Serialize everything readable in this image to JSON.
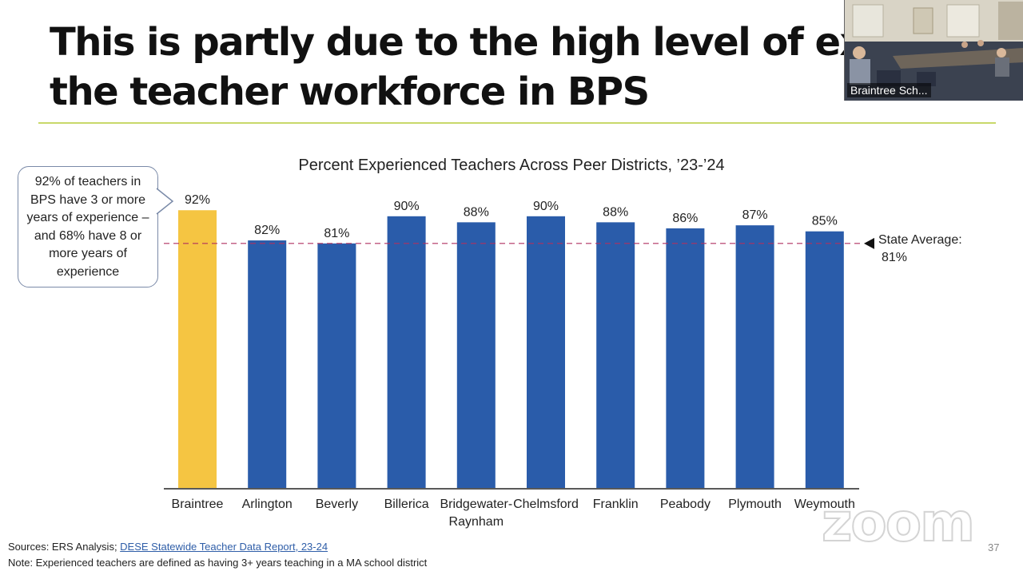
{
  "slide": {
    "title_line1": "This is partly due to the high level of experie",
    "title_line2": "the teacher workforce in BPS",
    "page_number": "37"
  },
  "video": {
    "participant_name": "Braintree Sch..."
  },
  "callout": {
    "text": "92% of teachers in BPS have 3 or more years of experience – and 68% have 8 or more years of experience"
  },
  "reference_line": {
    "label_line1": "State Average:",
    "label_line2": "81%",
    "value": 81,
    "color": "#b03060"
  },
  "colors": {
    "highlight_bar": "#f5c542",
    "bar": "#2a5caa",
    "title_rule": "#c8d86a"
  },
  "chart_data": {
    "type": "bar",
    "title": "Percent Experienced Teachers Across Peer Districts, ’23-’24",
    "categories": [
      "Braintree",
      "Arlington",
      "Beverly",
      "Billerica",
      "Bridgewater-Raynham",
      "Chelmsford",
      "Franklin",
      "Peabody",
      "Plymouth",
      "Weymouth"
    ],
    "category_lines": [
      [
        "Braintree"
      ],
      [
        "Arlington"
      ],
      [
        "Beverly"
      ],
      [
        "Billerica"
      ],
      [
        "Bridgewater-",
        "Raynham"
      ],
      [
        "Chelmsford"
      ],
      [
        "Franklin"
      ],
      [
        "Peabody"
      ],
      [
        "Plymouth"
      ],
      [
        "Weymouth"
      ]
    ],
    "values": [
      92,
      82,
      81,
      90,
      88,
      90,
      88,
      86,
      87,
      85
    ],
    "data_labels": [
      "92%",
      "82%",
      "81%",
      "90%",
      "88%",
      "90%",
      "88%",
      "86%",
      "87%",
      "85%"
    ],
    "highlight_index": 0,
    "ylim": [
      0,
      100
    ],
    "grid": false,
    "legend": "none",
    "xlabel": "",
    "ylabel": ""
  },
  "footer": {
    "source_prefix": "Sources: ERS Analysis; ",
    "source_link": "DESE Statewide Teacher Data Report, 23-24",
    "note": "Note: Experienced teachers are defined as having 3+ years teaching in a MA school district"
  },
  "watermark": {
    "text": "zoom"
  }
}
